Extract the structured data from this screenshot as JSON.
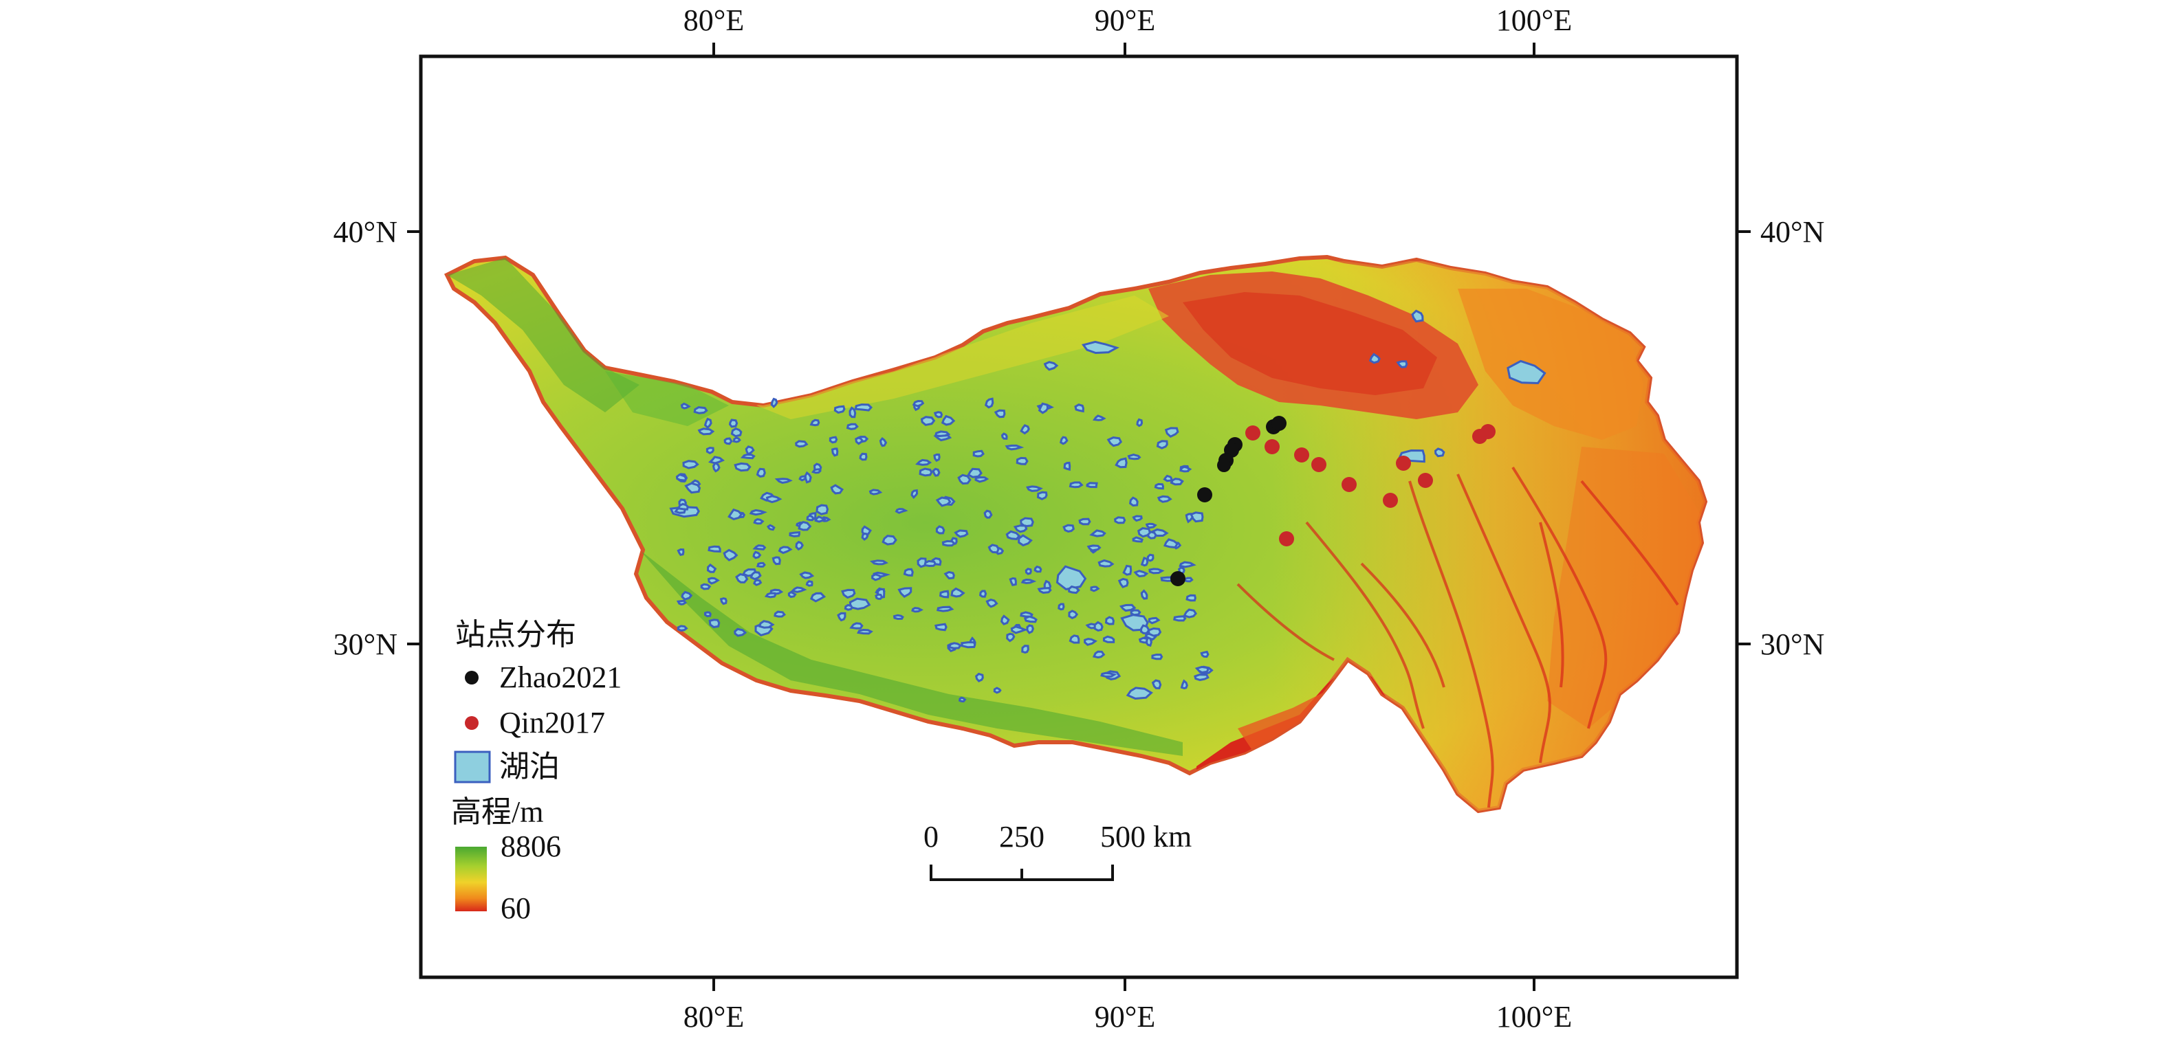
{
  "map": {
    "axes": {
      "top": [
        "80°E",
        "90°E",
        "100°E"
      ],
      "bottom": [
        "80°E",
        "90°E",
        "100°E"
      ],
      "left": [
        "40°N",
        "30°N"
      ],
      "right": [
        "40°N",
        "30°N"
      ]
    }
  },
  "legend": {
    "title": "站点分布",
    "items": [
      {
        "label": "Zhao2021",
        "color": "#111111",
        "icon": "black-dot"
      },
      {
        "label": "Qin2017",
        "color": "#c8282a",
        "icon": "red-dot"
      },
      {
        "label": "湖泊",
        "color": "#8ecfdf",
        "icon": "lake-swatch"
      }
    ],
    "elevation": {
      "title": "高程/m",
      "max": "8806",
      "min": "60",
      "colors": [
        "#4aa831",
        "#a6d02e",
        "#f0d22a",
        "#f08a1c",
        "#d8281a"
      ]
    }
  },
  "scale_bar": {
    "labels": [
      "0",
      "250",
      "500 km"
    ]
  },
  "colors": {
    "frame": "#111111",
    "plateau_low": "#8cc63c",
    "plateau_mid": "#c9d52f",
    "high_orange": "#f08a1c",
    "deep_red": "#d8281a",
    "lake_fill": "#8ecfdf",
    "lake_stroke": "#3b5fbf",
    "site_black": "#111111",
    "site_red": "#c8282a"
  }
}
